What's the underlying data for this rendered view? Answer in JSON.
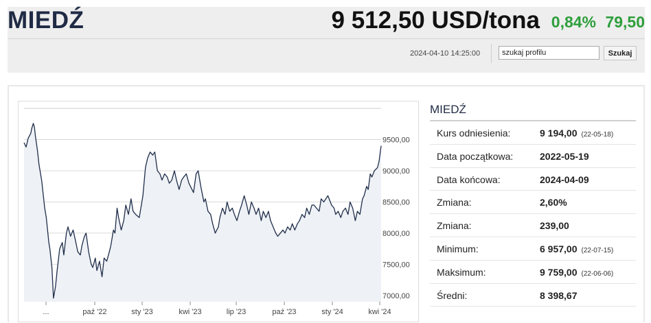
{
  "header": {
    "title": "MIEDŹ",
    "price": "9 512,50 USD/tona",
    "change_pct": "0,84%",
    "change_abs": "79,50",
    "timestamp": "2024-04-10 14:25:00",
    "search": {
      "value": "szukaj profilu",
      "button_label": "Szukaj"
    },
    "colors": {
      "positive": "#2e9e3c",
      "title": "#1f2a44"
    }
  },
  "sidebar": {
    "title": "MIEDŹ",
    "rows": [
      {
        "label": "Kurs odniesienia:",
        "value": "9 194,00",
        "date": "(22-05-18)"
      },
      {
        "label": "Data początkowa:",
        "value": "2022-05-19",
        "date": ""
      },
      {
        "label": "Data końcowa:",
        "value": "2024-04-09",
        "date": ""
      },
      {
        "label": "Zmiana:",
        "value": "2,60%",
        "date": ""
      },
      {
        "label": "Zmiana:",
        "value": "239,00",
        "date": ""
      },
      {
        "label": "Minimum:",
        "value": "6 957,00",
        "date": "(22-07-15)"
      },
      {
        "label": "Maksimum:",
        "value": "9 759,00",
        "date": "(22-06-06)"
      },
      {
        "label": "Średni:",
        "value": "8 398,67",
        "date": ""
      }
    ]
  },
  "chart_data": {
    "type": "area",
    "x_tick_labels": [
      "...",
      "paź '22",
      "sty '23",
      "kwi '23",
      "lip '23",
      "paź '23",
      "sty '24",
      "kwi '24"
    ],
    "y_tick_labels": [
      "7000,00",
      "7500,00",
      "8000,00",
      "8500,00",
      "9000,00",
      "9500,00"
    ],
    "y_ticks": [
      7000,
      7500,
      8000,
      8500,
      9000,
      9500
    ],
    "ylim": [
      6900,
      10000
    ],
    "x_range": [
      "2022-05-19",
      "2024-04-09"
    ],
    "grid": true,
    "colors": {
      "line": "#1f2d4a",
      "fill": "#eef1f5"
    },
    "series": [
      {
        "x": [
          "2022-05-19",
          "2022-05-23",
          "2022-05-27",
          "2022-06-01",
          "2022-06-03",
          "2022-06-06",
          "2022-06-08",
          "2022-06-10",
          "2022-06-14",
          "2022-06-17",
          "2022-06-22",
          "2022-06-28",
          "2022-07-01",
          "2022-07-06",
          "2022-07-08",
          "2022-07-12",
          "2022-07-15",
          "2022-07-19",
          "2022-07-22",
          "2022-07-27",
          "2022-08-01",
          "2022-08-04",
          "2022-08-09",
          "2022-08-12",
          "2022-08-17",
          "2022-08-22",
          "2022-08-26",
          "2022-08-31",
          "2022-09-05",
          "2022-09-08",
          "2022-09-13",
          "2022-09-16",
          "2022-09-21",
          "2022-09-26",
          "2022-09-29",
          "2022-10-04",
          "2022-10-07",
          "2022-10-12",
          "2022-10-17",
          "2022-10-21",
          "2022-10-26",
          "2022-10-31",
          "2022-11-03",
          "2022-11-08",
          "2022-11-11",
          "2022-11-15",
          "2022-11-18",
          "2022-11-23",
          "2022-11-28",
          "2022-12-02",
          "2022-12-07",
          "2022-12-12",
          "2022-12-16",
          "2022-12-21",
          "2022-12-28",
          "2023-01-04",
          "2023-01-09",
          "2023-01-13",
          "2023-01-18",
          "2023-01-23",
          "2023-01-27",
          "2023-02-01",
          "2023-02-06",
          "2023-02-10",
          "2023-02-15",
          "2023-02-20",
          "2023-02-24",
          "2023-03-01",
          "2023-03-06",
          "2023-03-10",
          "2023-03-15",
          "2023-03-20",
          "2023-03-24",
          "2023-03-29",
          "2023-04-03",
          "2023-04-06",
          "2023-04-12",
          "2023-04-17",
          "2023-04-21",
          "2023-04-26",
          "2023-05-02",
          "2023-05-05",
          "2023-05-10",
          "2023-05-15",
          "2023-05-19",
          "2023-05-24",
          "2023-05-30",
          "2023-06-02",
          "2023-06-07",
          "2023-06-12",
          "2023-06-16",
          "2023-06-21",
          "2023-06-26",
          "2023-06-30",
          "2023-07-05",
          "2023-07-10",
          "2023-07-14",
          "2023-07-19",
          "2023-07-24",
          "2023-07-28",
          "2023-08-02",
          "2023-08-07",
          "2023-08-11",
          "2023-08-16",
          "2023-08-21",
          "2023-08-25",
          "2023-08-30",
          "2023-09-04",
          "2023-09-08",
          "2023-09-13",
          "2023-09-18",
          "2023-09-22",
          "2023-09-27",
          "2023-10-02",
          "2023-10-06",
          "2023-10-11",
          "2023-10-16",
          "2023-10-20",
          "2023-10-25",
          "2023-10-30",
          "2023-11-03",
          "2023-11-08",
          "2023-11-13",
          "2023-11-17",
          "2023-11-22",
          "2023-11-27",
          "2023-12-01",
          "2023-12-06",
          "2023-12-11",
          "2023-12-15",
          "2023-12-20",
          "2023-12-28",
          "2024-01-04",
          "2024-01-09",
          "2024-01-12",
          "2024-01-17",
          "2024-01-22",
          "2024-01-26",
          "2024-01-31",
          "2024-02-05",
          "2024-02-09",
          "2024-02-14",
          "2024-02-19",
          "2024-02-23",
          "2024-02-28",
          "2024-03-04",
          "2024-03-07",
          "2024-03-12",
          "2024-03-15",
          "2024-03-19",
          "2024-03-22",
          "2024-03-27",
          "2024-04-02",
          "2024-04-05",
          "2024-04-09"
        ],
        "y": [
          9450,
          9380,
          9520,
          9600,
          9680,
          9759,
          9700,
          9550,
          9320,
          9100,
          8850,
          8400,
          8250,
          7850,
          7750,
          7450,
          6957,
          7150,
          7400,
          7750,
          7850,
          7650,
          8000,
          8100,
          7950,
          8050,
          7900,
          7700,
          7650,
          7800,
          7950,
          8000,
          7700,
          7500,
          7450,
          7600,
          7400,
          7550,
          7300,
          7600,
          7550,
          7700,
          7800,
          8050,
          8000,
          8400,
          8250,
          8050,
          8200,
          8450,
          8300,
          8550,
          8350,
          8300,
          8250,
          8600,
          9050,
          9200,
          9300,
          9250,
          9300,
          9000,
          8950,
          8850,
          8950,
          8900,
          8800,
          8850,
          9000,
          8850,
          8700,
          8850,
          8900,
          8950,
          8800,
          8750,
          8650,
          8950,
          9000,
          8750,
          8500,
          8550,
          8350,
          8300,
          8150,
          8000,
          8100,
          8250,
          8400,
          8300,
          8500,
          8350,
          8400,
          8300,
          8200,
          8350,
          8450,
          8600,
          8450,
          8300,
          8500,
          8400,
          8300,
          8400,
          8200,
          8350,
          8250,
          8350,
          8200,
          8100,
          8000,
          7950,
          8000,
          8050,
          8000,
          8100,
          8050,
          8150,
          8050,
          8150,
          8200,
          8300,
          8250,
          8400,
          8300,
          8450,
          8450,
          8400,
          8350,
          8550,
          8500,
          8600,
          8450,
          8400,
          8300,
          8350,
          8250,
          8350,
          8400,
          8300,
          8500,
          8400,
          8200,
          8350,
          8300,
          8550,
          8600,
          8750,
          8700,
          8950,
          8900,
          9000,
          9050,
          9150,
          9400
        ]
      }
    ]
  }
}
